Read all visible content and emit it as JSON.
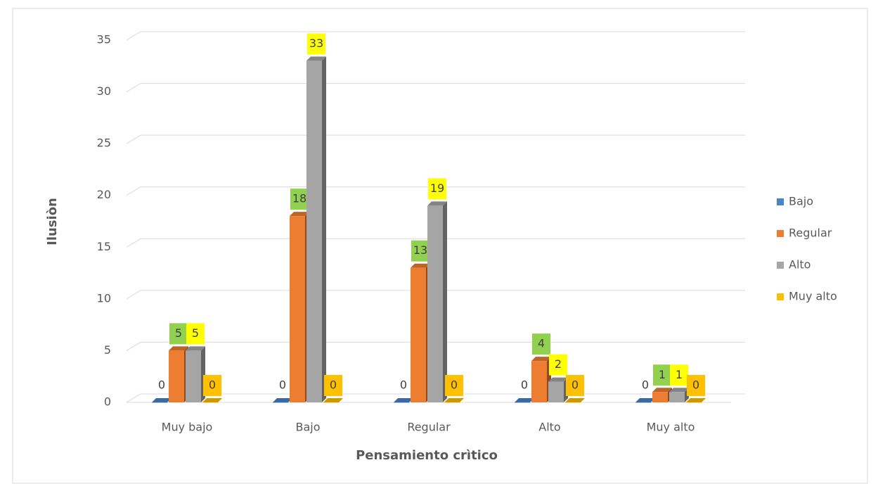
{
  "chart_data": {
    "type": "bar3d",
    "x_label": "Pensamiento crìtico",
    "y_label": "Ilusiòn",
    "categories": [
      "Muy bajo",
      "Bajo",
      "Regular",
      "Alto",
      "Muy alto"
    ],
    "series": [
      {
        "name": "Bajo",
        "color": "#4a86c6",
        "values": [
          0,
          0,
          0,
          0,
          0
        ]
      },
      {
        "name": "Regular",
        "color": "#ed7d31",
        "label_color": "#92d050",
        "values": [
          5,
          18,
          13,
          4,
          1
        ]
      },
      {
        "name": "Alto",
        "color": "#a5a5a5",
        "label_color": "#ffff00",
        "values": [
          5,
          33,
          19,
          2,
          1
        ]
      },
      {
        "name": "Muy alto",
        "color": "#ffc000",
        "label_color": "#ffc000",
        "values": [
          0,
          0,
          0,
          0,
          0
        ]
      }
    ],
    "ylim": [
      0,
      35
    ],
    "yticks": [
      0,
      5,
      10,
      15,
      20,
      25,
      30,
      35
    ],
    "grid": true,
    "legend": "right"
  }
}
